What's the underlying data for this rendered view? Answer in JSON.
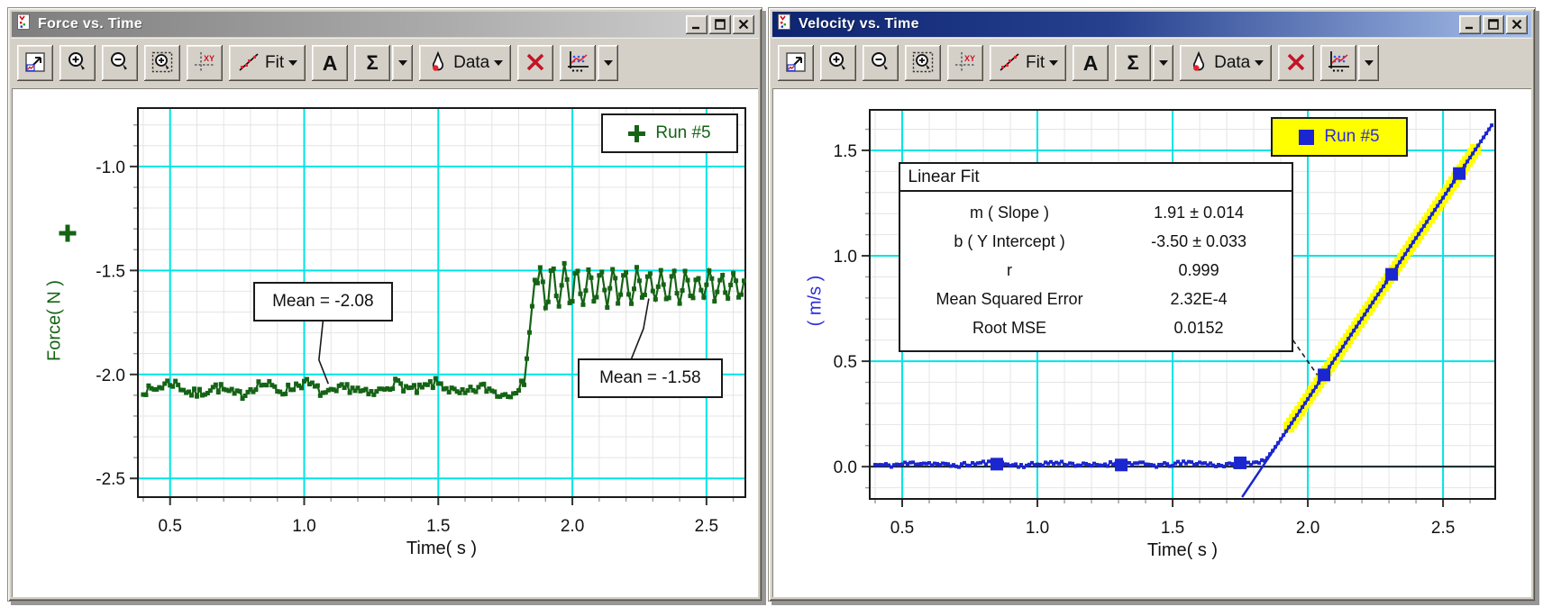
{
  "toolbar": {
    "fit_label": "Fit",
    "annotate_label": "A",
    "sigma_label": "Σ",
    "data_label": "Data"
  },
  "windows": [
    {
      "title": "Force vs. Time",
      "active": false
    },
    {
      "title": "Velocity vs. Time",
      "active": true
    }
  ],
  "colors": {
    "window_face": "#d4d0c8",
    "active_title_from": "#0d2470",
    "active_title_to": "#a7c0ea",
    "inactive_title_from": "#7e7e7e",
    "inactive_title_to": "#d2d2d2",
    "grid_major": "#00e4e4",
    "grid_minor": "#e4e4e4",
    "force_green": "#156315",
    "velocity_blue": "#1a26cf",
    "selection_yellow": "#ffff00",
    "delete_red": "#c41426"
  },
  "chart_data": [
    {
      "type": "line",
      "title": "Force vs. Time",
      "xlabel": "Time( s )",
      "ylabel": "Force( N )",
      "series_color": "#156315",
      "xlim": [
        0.38,
        2.645
      ],
      "ylim": [
        -2.59,
        -0.719
      ],
      "x_minor": 0.1,
      "y_minor": 0.1,
      "grid": {
        "major_color": "#00e4e4",
        "minor_color": "#e4e4e4",
        "on": true
      },
      "x_ticks": [
        {
          "v": 0.5,
          "label": "0.5"
        },
        {
          "v": 1.0,
          "label": "1.0"
        },
        {
          "v": 1.5,
          "label": "1.5"
        },
        {
          "v": 2.0,
          "label": "2.0"
        },
        {
          "v": 2.5,
          "label": "2.5"
        }
      ],
      "y_ticks": [
        {
          "v": -1.0,
          "label": "-1.0"
        },
        {
          "v": -1.5,
          "label": "-1.5"
        },
        {
          "v": -2.0,
          "label": "-2.0"
        },
        {
          "v": -2.5,
          "label": "-2.5"
        }
      ],
      "legend": {
        "label": "Run #5",
        "marker": "plus",
        "color": "#156315",
        "bg": "#ffffff",
        "offset": [
          8,
          6
        ]
      },
      "series": {
        "name": "Run #5",
        "generator": "force_step",
        "x_start": 0.4,
        "x_end": 2.64,
        "x_step": 0.01,
        "flat_mean": -2.07,
        "flat_noise": 0.05,
        "step_x": 1.82,
        "step_from": -2.05,
        "step_rise_to": -1.42,
        "osc_mean": -1.58,
        "osc_amp_start": 0.115,
        "osc_amp_end": 0.04,
        "osc_period": 0.045,
        "seed": 7
      },
      "annotations": [
        {
          "text": "Mean = -2.08",
          "mean": -2.08,
          "box": [
            0.81,
            -1.555,
            1.33,
            -1.745
          ],
          "leader": [
            [
              1.07,
              -1.745
            ],
            [
              1.055,
              -1.93
            ],
            [
              1.09,
              -2.045
            ]
          ],
          "dashed": false
        },
        {
          "text": "Mean = -1.58",
          "mean": -1.58,
          "box": [
            2.02,
            -1.925,
            2.56,
            -2.115
          ],
          "leader": [
            [
              2.22,
              -1.925
            ],
            [
              2.265,
              -1.78
            ],
            [
              2.285,
              -1.635
            ]
          ],
          "dashed": false
        }
      ]
    },
    {
      "type": "line",
      "title": "Velocity vs. Time",
      "xlabel": "Time( s )",
      "ylabel": "( m/s )",
      "series_color": "#1a26cf",
      "xlim": [
        0.38,
        2.693
      ],
      "ylim": [
        -0.153,
        1.692
      ],
      "x_minor": 0.1,
      "y_minor": 0.1,
      "grid": {
        "major_color": "#00e4e4",
        "minor_color": "#e4e4e4",
        "on": true
      },
      "x_ticks": [
        {
          "v": 0.5,
          "label": "0.5"
        },
        {
          "v": 1.0,
          "label": "1.0"
        },
        {
          "v": 1.5,
          "label": "1.5"
        },
        {
          "v": 2.0,
          "label": "2.0"
        },
        {
          "v": 2.5,
          "label": "2.5"
        }
      ],
      "y_ticks": [
        {
          "v": 0.0,
          "label": "0.0"
        },
        {
          "v": 0.5,
          "label": "0.5"
        },
        {
          "v": 1.0,
          "label": "1.0"
        },
        {
          "v": 1.5,
          "label": "1.5"
        }
      ],
      "legend": {
        "label": "Run #5",
        "marker": "square",
        "color": "#1a26cf",
        "bg": "#ffff00",
        "offset": [
          97,
          8
        ]
      },
      "zero_line": true,
      "fit_line": {
        "m": 1.91,
        "b": -3.5,
        "x_from": 1.757,
        "x_to": 2.68
      },
      "series": {
        "name": "Run #5",
        "generator": "velocity_knee",
        "x_start": 0.4,
        "x_end": 2.68,
        "x_step": 0.01,
        "flat_mean": 0.012,
        "flat_noise": 0.02,
        "seed": 11
      },
      "selection": {
        "x_from": 1.93,
        "x_to": 2.62,
        "color": "#ffff00",
        "size": 12
      },
      "markers": {
        "size": 14,
        "points": [
          [
            0.85,
            0.012
          ],
          [
            1.31,
            0.008
          ],
          [
            1.75,
            0.018
          ],
          [
            2.06,
            0.435
          ],
          [
            2.31,
            0.912
          ],
          [
            2.56,
            1.39
          ]
        ]
      },
      "fit_box": {
        "title": "Linear Fit",
        "box": [
          0.485,
          1.445,
          1.945,
          0.545
        ],
        "leader": [
          [
            1.945,
            0.6
          ],
          [
            2.035,
            0.435
          ]
        ],
        "dashed": true,
        "rows": [
          {
            "label": "m ( Slope )",
            "value": "1.91 ± 0.014"
          },
          {
            "label": "b ( Y Intercept )",
            "value": "-3.50 ± 0.033"
          },
          {
            "label": "r",
            "value": "0.999"
          },
          {
            "label": "Mean Squared Error",
            "value": "2.32E-4"
          },
          {
            "label": "Root MSE",
            "value": "0.0152"
          }
        ]
      }
    }
  ]
}
